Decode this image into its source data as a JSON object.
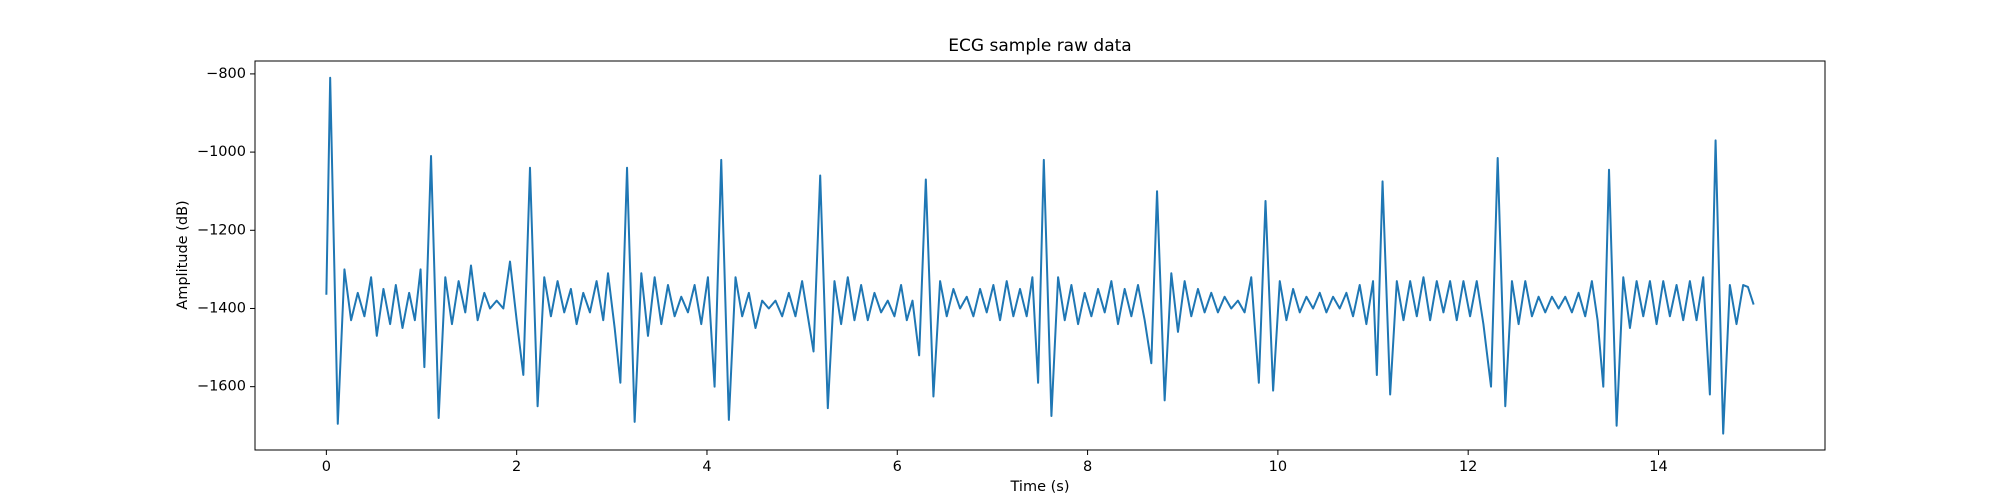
{
  "chart_data": {
    "type": "line",
    "title": "ECG sample raw data",
    "x_label": "Time (s)",
    "y_label": "Amplitude (dB)",
    "xlim": [
      -0.75,
      15.75
    ],
    "ylim": [
      -1762,
      -767
    ],
    "xticks": [
      0,
      2,
      4,
      6,
      8,
      10,
      12,
      14
    ],
    "yticks": [
      {
        "value": -1600,
        "label": "−1600"
      },
      {
        "value": -1400,
        "label": "−1400"
      },
      {
        "value": -1200,
        "label": "−1200"
      },
      {
        "value": -1000,
        "label": "−1000"
      },
      {
        "value": -800,
        "label": "−800"
      }
    ],
    "x": [
      0,
      0.04,
      0.12,
      0.19,
      0.26,
      0.33,
      0.4,
      0.47,
      0.53,
      0.6,
      0.67,
      0.73,
      0.8,
      0.87,
      0.93,
      0.99,
      1.03,
      1.1,
      1.18,
      1.25,
      1.32,
      1.39,
      1.46,
      1.52,
      1.59,
      1.66,
      1.72,
      1.79,
      1.86,
      1.93,
      2.0,
      2.07,
      2.14,
      2.22,
      2.29,
      2.36,
      2.43,
      2.5,
      2.57,
      2.63,
      2.7,
      2.77,
      2.84,
      2.91,
      2.96,
      3.03,
      3.09,
      3.16,
      3.24,
      3.31,
      3.38,
      3.45,
      3.52,
      3.59,
      3.66,
      3.73,
      3.8,
      3.87,
      3.94,
      4.01,
      4.08,
      4.15,
      4.23,
      4.3,
      4.37,
      4.44,
      4.51,
      4.58,
      4.65,
      4.72,
      4.79,
      4.86,
      4.93,
      5.0,
      5.06,
      5.12,
      5.19,
      5.27,
      5.34,
      5.41,
      5.48,
      5.55,
      5.62,
      5.69,
      5.76,
      5.83,
      5.9,
      5.97,
      6.04,
      6.1,
      6.16,
      6.23,
      6.3,
      6.38,
      6.45,
      6.52,
      6.59,
      6.66,
      6.73,
      6.8,
      6.87,
      6.94,
      7.01,
      7.08,
      7.15,
      7.22,
      7.29,
      7.36,
      7.42,
      7.48,
      7.54,
      7.62,
      7.69,
      7.76,
      7.83,
      7.9,
      7.97,
      8.04,
      8.11,
      8.18,
      8.25,
      8.32,
      8.39,
      8.46,
      8.53,
      8.6,
      8.67,
      8.73,
      8.81,
      8.88,
      8.95,
      9.02,
      9.09,
      9.16,
      9.23,
      9.3,
      9.37,
      9.44,
      9.51,
      9.58,
      9.65,
      9.72,
      9.8,
      9.87,
      9.95,
      10.02,
      10.09,
      10.16,
      10.23,
      10.3,
      10.37,
      10.44,
      10.51,
      10.58,
      10.65,
      10.72,
      10.79,
      10.86,
      10.93,
      11.0,
      11.04,
      11.1,
      11.18,
      11.25,
      11.32,
      11.39,
      11.46,
      11.53,
      11.6,
      11.67,
      11.74,
      11.81,
      11.88,
      11.95,
      12.02,
      12.09,
      12.16,
      12.24,
      12.31,
      12.39,
      12.46,
      12.53,
      12.6,
      12.67,
      12.74,
      12.81,
      12.88,
      12.95,
      13.02,
      13.09,
      13.16,
      13.23,
      13.3,
      13.36,
      13.42,
      13.48,
      13.56,
      13.63,
      13.7,
      13.77,
      13.84,
      13.91,
      13.98,
      14.05,
      14.12,
      14.19,
      14.26,
      14.33,
      14.4,
      14.47,
      14.54,
      14.6,
      14.68,
      14.75,
      14.82,
      14.89,
      14.94,
      15.0
    ],
    "series": [
      {
        "color": "#1f77b4",
        "values": [
          -1365,
          -810,
          -1695,
          -1300,
          -1430,
          -1360,
          -1420,
          -1320,
          -1470,
          -1350,
          -1440,
          -1340,
          -1450,
          -1360,
          -1430,
          -1300,
          -1550,
          -1010,
          -1680,
          -1320,
          -1440,
          -1330,
          -1410,
          -1290,
          -1430,
          -1360,
          -1400,
          -1380,
          -1400,
          -1280,
          -1430,
          -1570,
          -1040,
          -1650,
          -1320,
          -1420,
          -1330,
          -1410,
          -1350,
          -1440,
          -1360,
          -1410,
          -1330,
          -1430,
          -1310,
          -1450,
          -1590,
          -1040,
          -1690,
          -1310,
          -1470,
          -1320,
          -1440,
          -1340,
          -1420,
          -1370,
          -1410,
          -1340,
          -1440,
          -1320,
          -1600,
          -1020,
          -1685,
          -1320,
          -1420,
          -1360,
          -1450,
          -1380,
          -1400,
          -1380,
          -1420,
          -1360,
          -1420,
          -1330,
          -1420,
          -1510,
          -1060,
          -1655,
          -1330,
          -1440,
          -1320,
          -1430,
          -1340,
          -1430,
          -1360,
          -1410,
          -1380,
          -1420,
          -1340,
          -1430,
          -1380,
          -1520,
          -1070,
          -1625,
          -1330,
          -1420,
          -1350,
          -1400,
          -1370,
          -1420,
          -1350,
          -1410,
          -1340,
          -1430,
          -1330,
          -1420,
          -1350,
          -1420,
          -1320,
          -1590,
          -1020,
          -1675,
          -1320,
          -1430,
          -1340,
          -1440,
          -1360,
          -1420,
          -1350,
          -1410,
          -1330,
          -1440,
          -1350,
          -1420,
          -1340,
          -1430,
          -1540,
          -1100,
          -1635,
          -1310,
          -1460,
          -1330,
          -1420,
          -1350,
          -1410,
          -1360,
          -1410,
          -1370,
          -1400,
          -1380,
          -1410,
          -1320,
          -1590,
          -1125,
          -1610,
          -1330,
          -1430,
          -1350,
          -1410,
          -1370,
          -1400,
          -1360,
          -1410,
          -1370,
          -1400,
          -1360,
          -1420,
          -1340,
          -1440,
          -1330,
          -1570,
          -1075,
          -1620,
          -1330,
          -1430,
          -1330,
          -1420,
          -1320,
          -1430,
          -1330,
          -1410,
          -1330,
          -1430,
          -1330,
          -1420,
          -1330,
          -1440,
          -1600,
          -1015,
          -1650,
          -1330,
          -1440,
          -1330,
          -1420,
          -1370,
          -1410,
          -1370,
          -1400,
          -1370,
          -1410,
          -1360,
          -1420,
          -1330,
          -1430,
          -1600,
          -1045,
          -1700,
          -1320,
          -1450,
          -1330,
          -1420,
          -1330,
          -1440,
          -1330,
          -1420,
          -1340,
          -1430,
          -1330,
          -1430,
          -1320,
          -1620,
          -970,
          -1720,
          -1340,
          -1440,
          -1340,
          -1345,
          -1390
        ]
      }
    ]
  }
}
